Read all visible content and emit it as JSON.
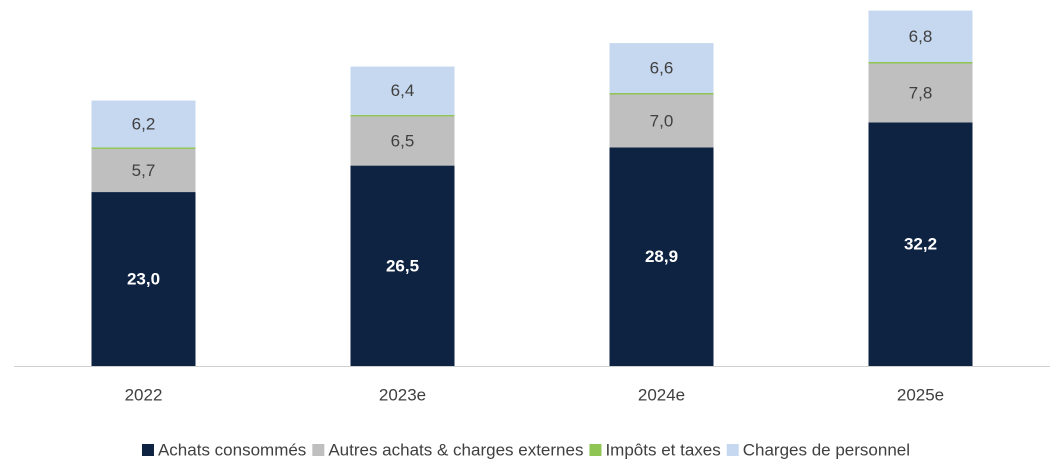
{
  "chart_data": {
    "type": "stacked_bar",
    "categories": [
      "2022",
      "2023e",
      "2024e",
      "2025e"
    ],
    "series": [
      {
        "name": "Achats consommés",
        "color": "#0e2241",
        "values": [
          23.0,
          26.5,
          28.9,
          32.2
        ],
        "value_labels": [
          "23,0",
          "26,5",
          "28,9",
          "32,2"
        ]
      },
      {
        "name": "Autres achats & charges externes",
        "color": "#bfbfbf",
        "values": [
          5.7,
          6.5,
          7.0,
          7.8
        ],
        "value_labels": [
          "5,7",
          "6,5",
          "7,0",
          "7,8"
        ]
      },
      {
        "name": "Impôts et taxes",
        "color": "#8fc552",
        "values": [
          0.2,
          0.2,
          0.2,
          0.2
        ]
      },
      {
        "name": "Charges de personnel",
        "color": "#c6d8f0",
        "values": [
          6.2,
          6.4,
          6.6,
          6.8
        ],
        "value_labels": [
          "6,2",
          "6,4",
          "6,6",
          "6,8"
        ]
      }
    ],
    "ylim": [
      0,
      48
    ],
    "legend": "bottom"
  }
}
